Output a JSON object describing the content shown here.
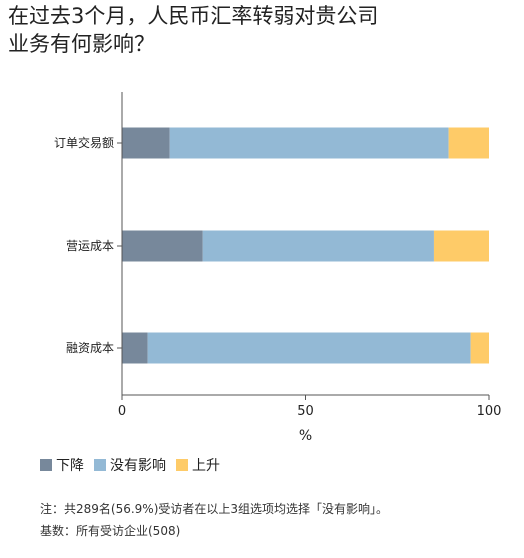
{
  "title_lines": [
    "在过去3个月，人民币汇率转弱对贵公司",
    "业务有何影响？"
  ],
  "chart_data": {
    "type": "bar",
    "orientation": "horizontal",
    "stacked": true,
    "categories": [
      "订单交易额",
      "营运成本",
      "融资成本"
    ],
    "series": [
      {
        "name": "下降",
        "color": "#77889b",
        "values": [
          13,
          22,
          7
        ]
      },
      {
        "name": "没有影响",
        "color": "#93b9d5",
        "values": [
          76,
          63,
          88
        ]
      },
      {
        "name": "上升",
        "color": "#fecb68",
        "values": [
          11,
          15,
          5
        ]
      }
    ],
    "xlim": [
      0,
      100
    ],
    "xticks": [
      "0",
      "50",
      "100"
    ],
    "xlabel": "%",
    "legend_position": "bottom"
  },
  "notes": [
    "注：共289名(56.9%)受访者在以上3组选项均选择「没有影响」。",
    "基数：所有受访企业(508)"
  ]
}
